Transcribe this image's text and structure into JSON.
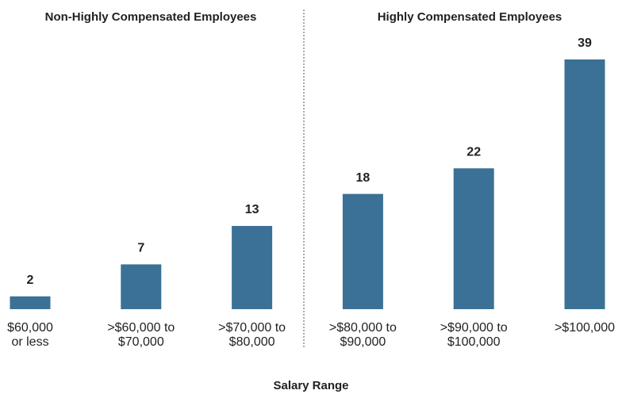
{
  "chart_data": {
    "type": "bar",
    "annotations": [
      "Non-Highly Compensated Employees",
      "Highly Compensated Employees"
    ],
    "x_label": "Salary Range",
    "categories": [
      "$60,000\nor less",
      ">$60,000 to\n$70,000",
      ">$70,000 to\n$80,000",
      ">$80,000 to\n$90,000",
      ">$90,000 to\n$100,000",
      ">$100,000"
    ],
    "values": [
      2,
      7,
      13,
      18,
      22,
      39
    ],
    "color": "#3b7196"
  }
}
